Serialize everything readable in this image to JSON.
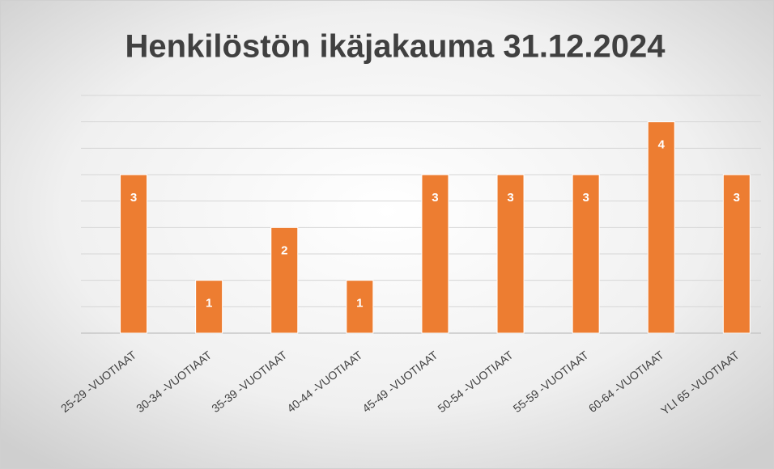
{
  "chart_data": {
    "type": "bar",
    "title": "Henkilöstön ikäjakauma 31.12.2024",
    "categories": [
      "25-29 -VUOTIAAT",
      "30-34 -VUOTIAAT",
      "35-39 -VUOTIAAT",
      "40-44 -VUOTIAAT",
      "45-49 -VUOTIAAT",
      "50-54 -VUOTIAAT",
      "55-59 -VUOTIAAT",
      "60-64 -VUOTIAAT",
      "YLI 65 -VUOTIAAT"
    ],
    "values": [
      3,
      1,
      2,
      1,
      3,
      3,
      3,
      4,
      3
    ],
    "color": "#ed7d31",
    "ylim": [
      0,
      4.5
    ],
    "yticks": [
      0,
      0.5,
      1,
      1.5,
      2,
      2.5,
      3,
      3.5,
      4,
      4.5
    ],
    "grid": true
  }
}
